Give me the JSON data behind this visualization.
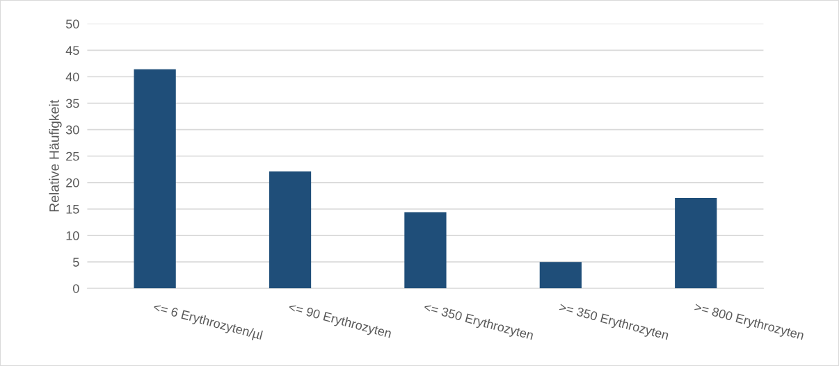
{
  "chart_data": {
    "type": "bar",
    "ylabel": "Relative Häufigkeit",
    "categories": [
      "<= 6 Erythrozyten/µl",
      "<= 90 Erythrozyten",
      "<= 350 Erythrozyten",
      ">= 350 Erythrozyten",
      ">= 800 Erythrozyten"
    ],
    "values": [
      41.4,
      22.1,
      14.4,
      5.0,
      17.1
    ],
    "color": "#1f4e79",
    "ylim": [
      0,
      50
    ],
    "yticks": [
      0,
      5,
      10,
      15,
      20,
      25,
      30,
      35,
      40,
      45,
      50
    ],
    "grid": "y",
    "legend": false
  }
}
